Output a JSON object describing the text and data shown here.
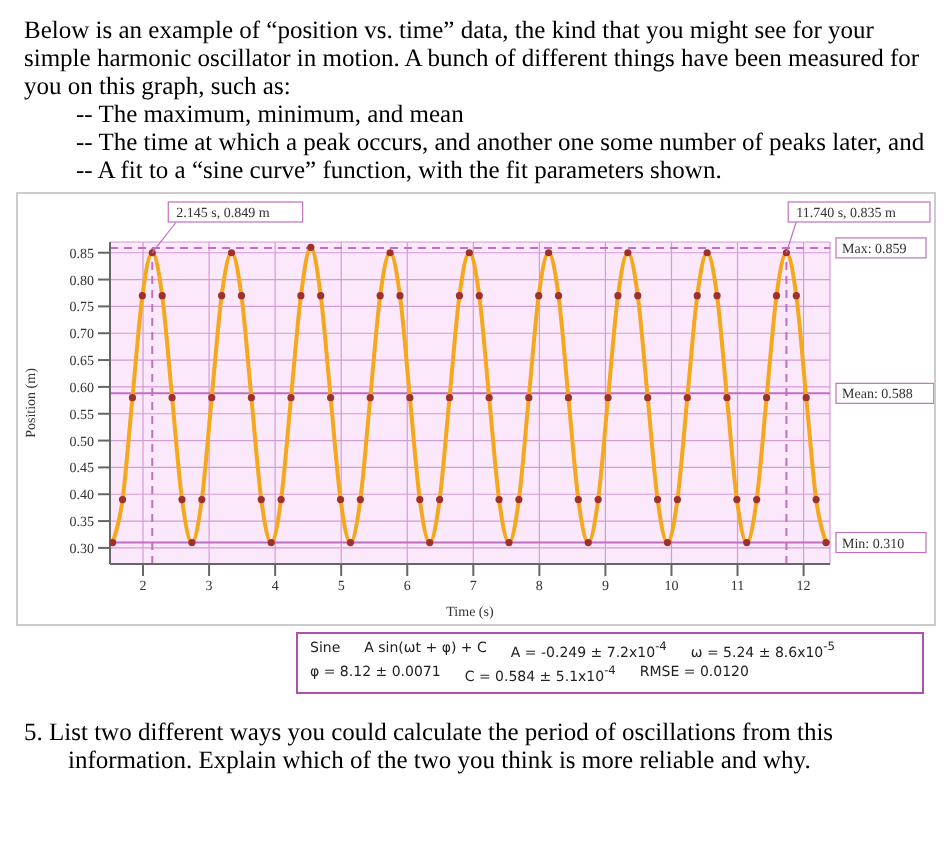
{
  "chart_data": {
    "type": "line",
    "title": "Below is an example of “position vs. time” data, the kind that you might see for your simple harmonic oscillator in motion.  A bunch of different things have been measured for you on this graph, such as:",
    "subtitle": "-- The maximum, minimum, and mean\n-- The time at which a peak occurs, and another one some number of peaks later, and\n-- A fit to a “sine curve” function, with the fit parameters shown.",
    "xlabel": "Time (s)",
    "ylabel": "Position (m)",
    "x": [
      1.54,
      1.69,
      1.84,
      1.99,
      2.14,
      2.29,
      2.44,
      2.59,
      2.74,
      2.89,
      3.04,
      3.19,
      3.34,
      3.49,
      3.64,
      3.79,
      3.94,
      4.09,
      4.24,
      4.39,
      4.54,
      4.69,
      4.84,
      4.99,
      5.14,
      5.29,
      5.44,
      5.59,
      5.74,
      5.89,
      6.04,
      6.19,
      6.34,
      6.49,
      6.64,
      6.79,
      6.94,
      7.09,
      7.24,
      7.39,
      7.54,
      7.69,
      7.84,
      7.99,
      8.14,
      8.29,
      8.44,
      8.59,
      8.74,
      8.89,
      9.04,
      9.19,
      9.34,
      9.49,
      9.64,
      9.79,
      9.94,
      10.09,
      10.24,
      10.39,
      10.54,
      10.69,
      10.84,
      10.99,
      11.14,
      11.29,
      11.44,
      11.59,
      11.74,
      11.89,
      12.04,
      12.19,
      12.34
    ],
    "series": [
      {
        "color": "#f5a81c",
        "values": [
          0.31,
          0.39,
          0.58,
          0.77,
          0.85,
          0.77,
          0.58,
          0.39,
          0.31,
          0.39,
          0.58,
          0.77,
          0.85,
          0.77,
          0.58,
          0.39,
          0.31,
          0.39,
          0.58,
          0.77,
          0.86,
          0.77,
          0.58,
          0.39,
          0.31,
          0.39,
          0.58,
          0.77,
          0.85,
          0.77,
          0.58,
          0.39,
          0.31,
          0.39,
          0.58,
          0.77,
          0.85,
          0.77,
          0.58,
          0.39,
          0.31,
          0.39,
          0.58,
          0.77,
          0.85,
          0.77,
          0.58,
          0.39,
          0.31,
          0.39,
          0.58,
          0.77,
          0.85,
          0.77,
          0.58,
          0.39,
          0.31,
          0.39,
          0.58,
          0.77,
          0.85,
          0.77,
          0.58,
          0.39,
          0.31,
          0.39,
          0.58,
          0.77,
          0.85,
          0.77,
          0.58,
          0.39,
          0.31
        ]
      }
    ],
    "xlim": [
      1.5,
      12.4
    ],
    "xticks": [
      2,
      3,
      4,
      5,
      6,
      7,
      8,
      9,
      10,
      11,
      12
    ],
    "ylim": [
      0.27,
      0.87
    ],
    "yticks": [
      {
        "value": 0.3,
        "label": "0.30"
      },
      0.35,
      {
        "value": 0.4,
        "label": "0.40"
      },
      0.45,
      {
        "value": 0.5,
        "label": "0.50"
      },
      0.55,
      {
        "value": 0.6,
        "label": "0.60"
      },
      0.65,
      {
        "value": 0.7,
        "label": "0.70"
      },
      0.75,
      {
        "value": 0.8,
        "label": "0.80"
      },
      0.85
    ],
    "grid": true,
    "marker": "circle",
    "line_style": "solid",
    "ref_lines": [
      {
        "axis": "y",
        "value": 0.859,
        "label": "Max: 0.859",
        "color": "#c070c0",
        "line_style": "dashed"
      },
      {
        "axis": "y",
        "value": 0.588,
        "label": "Mean: 0.588",
        "color": "#c070c0",
        "line_style": "solid"
      },
      {
        "axis": "y",
        "value": 0.31,
        "label": "Min: 0.310",
        "color": "#c070c0",
        "line_style": "solid"
      },
      {
        "axis": "x",
        "value": 2.14,
        "color": "#c070c0",
        "line_style": "dashed"
      },
      {
        "axis": "x",
        "value": 11.74,
        "color": "#c070c0",
        "line_style": "dashed"
      }
    ],
    "annotations": [
      {
        "text": "2.145 s, 0.849 m",
        "x": 2.14,
        "y": 0.85
      },
      {
        "text": "11.740 s, 0.835 m",
        "x": 11.74,
        "y": 0.85
      },
      "Sine",
      "A sin(ωt + φ) + C",
      "A = -0.249 ± 7.2x10$^{-4}$",
      "ω = 5.24 ± 8.6x10$^{-5}$",
      "φ = 8.12 ± 0.0071",
      "C = 0.584 ± 5.1x10$^{-4}$",
      "RMSE = 0.0120",
      "5.  List two different ways you could calculate the period of oscillations from this information.  Explain which of the two you think is more reliable and why."
    ]
  }
}
